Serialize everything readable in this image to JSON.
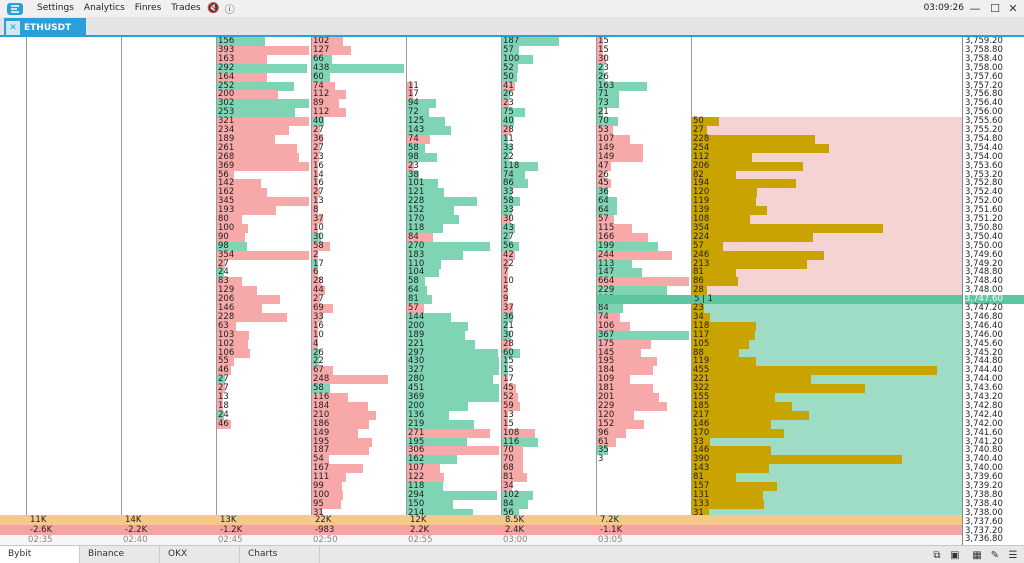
{
  "menu": {
    "items": [
      "Settings",
      "Analytics",
      "Finres",
      "Trades"
    ],
    "clock": "03:09:26"
  },
  "tab": {
    "label": "ETHUSDT"
  },
  "colors": {
    "buy": "#7fd4b3",
    "sell": "#f7a8a8",
    "gold": "#c9a300",
    "accent": "#2aa0d8"
  },
  "prices": [
    "3,759.20",
    "3,758.80",
    "3,758.40",
    "3,758.00",
    "3,757.60",
    "3,757.20",
    "3,756.80",
    "3,756.40",
    "3,756.00",
    "3,755.60",
    "3,755.20",
    "3,754.80",
    "3,754.40",
    "3,754.00",
    "3,753.60",
    "3,753.20",
    "3,752.80",
    "3,752.40",
    "3,752.00",
    "3,751.60",
    "3,751.20",
    "3,750.80",
    "3,750.40",
    "3,750.00",
    "3,749.60",
    "3,749.20",
    "3,748.80",
    "3,748.40",
    "3,748.00",
    "3,747.60",
    "3,747.20",
    "3,746.80",
    "3,746.40",
    "3,746.00",
    "3,745.60",
    "3,745.20",
    "3,744.80",
    "3,744.40",
    "3,744.00",
    "3,743.60",
    "3,743.20",
    "3,742.80",
    "3,742.40",
    "3,742.00",
    "3,741.60",
    "3,741.20",
    "3,740.80",
    "3,740.40",
    "3,740.00",
    "3,739.60",
    "3,739.20",
    "3,738.80",
    "3,738.40",
    "3,738.00",
    "3,737.60",
    "3,737.20",
    "3,736.80"
  ],
  "current_price_label": "3,747.60",
  "current_price_cell": "5 | 1",
  "columns": [
    {
      "time": "02:35",
      "total": "11K",
      "delta": "-2.6K",
      "cells": []
    },
    {
      "time": "02:40",
      "total": "14K",
      "delta": "-2.2K",
      "cells": []
    },
    {
      "time": "02:45",
      "total": "13K",
      "delta": "-1.2K",
      "cells": [
        [
          "156",
          "b"
        ],
        [
          "393",
          "s"
        ],
        [
          "163",
          "s"
        ],
        [
          "292",
          "b"
        ],
        [
          "164",
          "s"
        ],
        [
          "252",
          "b"
        ],
        [
          "200",
          "s"
        ],
        [
          "302",
          "b"
        ],
        [
          "253",
          "b"
        ],
        [
          "321",
          "s"
        ],
        [
          "234",
          "s"
        ],
        [
          "189",
          "s"
        ],
        [
          "261",
          "s"
        ],
        [
          "268",
          "s"
        ],
        [
          "369",
          "s"
        ],
        [
          "56",
          "s"
        ],
        [
          "142",
          "s"
        ],
        [
          "162",
          "s"
        ],
        [
          "345",
          "s"
        ],
        [
          "193",
          "s"
        ],
        [
          "80",
          "s"
        ],
        [
          "100",
          "s"
        ],
        [
          "90",
          "s"
        ],
        [
          "98",
          "b"
        ],
        [
          "354",
          "s"
        ],
        [
          "27",
          "s"
        ],
        [
          "24",
          "b"
        ],
        [
          "83",
          "s"
        ],
        [
          "129",
          "s"
        ],
        [
          "206",
          "s"
        ],
        [
          "146",
          "s"
        ],
        [
          "228",
          "s"
        ],
        [
          "63",
          "s"
        ],
        [
          "103",
          "s"
        ],
        [
          "102",
          "s"
        ],
        [
          "106",
          "s"
        ],
        [
          "55",
          "s"
        ],
        [
          "46",
          "s"
        ],
        [
          "27",
          "b"
        ],
        [
          "27",
          "s"
        ],
        [
          "13",
          "s"
        ],
        [
          "18",
          "s"
        ],
        [
          "24",
          "b"
        ],
        [
          "46",
          "s"
        ]
      ]
    },
    {
      "time": "02:50",
      "total": "22K",
      "delta": "-983",
      "cells": [
        [
          "102",
          "s"
        ],
        [
          "127",
          "s"
        ],
        [
          "66",
          "b"
        ],
        [
          "438",
          "b"
        ],
        [
          "60",
          "b"
        ],
        [
          "74",
          "s"
        ],
        [
          "112",
          "s"
        ],
        [
          "89",
          "s"
        ],
        [
          "112",
          "s"
        ],
        [
          "40",
          "b"
        ],
        [
          "27",
          "s"
        ],
        [
          "36",
          "s"
        ],
        [
          "27",
          "s"
        ],
        [
          "23",
          "s"
        ],
        [
          "16",
          "s"
        ],
        [
          "14",
          "s"
        ],
        [
          "16",
          "s"
        ],
        [
          "27",
          "s"
        ],
        [
          "13",
          "s"
        ],
        [
          "8",
          "s"
        ],
        [
          "37",
          "s"
        ],
        [
          "10",
          "s"
        ],
        [
          "30",
          "b"
        ],
        [
          "58",
          "s"
        ],
        [
          "2",
          "s"
        ],
        [
          "17",
          "b"
        ],
        [
          "6",
          "s"
        ],
        [
          "28",
          "s"
        ],
        [
          "44",
          "s"
        ],
        [
          "27",
          "s"
        ],
        [
          "69",
          "s"
        ],
        [
          "33",
          "s"
        ],
        [
          "16",
          "s"
        ],
        [
          "10",
          "s"
        ],
        [
          "4",
          "s"
        ],
        [
          "26",
          "b"
        ],
        [
          "22",
          "b"
        ],
        [
          "67",
          "s"
        ],
        [
          "248",
          "s"
        ],
        [
          "58",
          "b"
        ],
        [
          "116",
          "s"
        ],
        [
          "184",
          "s"
        ],
        [
          "210",
          "s"
        ],
        [
          "186",
          "s"
        ],
        [
          "149",
          "s"
        ],
        [
          "195",
          "s"
        ],
        [
          "187",
          "s"
        ],
        [
          "54",
          "s"
        ],
        [
          "167",
          "s"
        ],
        [
          "111",
          "s"
        ],
        [
          "99",
          "s"
        ],
        [
          "100",
          "s"
        ],
        [
          "95",
          "s"
        ],
        [
          "31",
          "s"
        ]
      ]
    },
    {
      "time": "02:55",
      "total": "12K",
      "delta": "2.2K",
      "cells": [
        [
          "",
          "x"
        ],
        [
          "",
          "x"
        ],
        [
          "",
          "x"
        ],
        [
          "",
          "x"
        ],
        [
          "",
          "x"
        ],
        [
          "11",
          "s"
        ],
        [
          "17",
          "s"
        ],
        [
          "94",
          "b"
        ],
        [
          "72",
          "b"
        ],
        [
          "125",
          "b"
        ],
        [
          "143",
          "b"
        ],
        [
          "74",
          "s"
        ],
        [
          "58",
          "b"
        ],
        [
          "98",
          "b"
        ],
        [
          "23",
          "s"
        ],
        [
          "38",
          "b"
        ],
        [
          "101",
          "b"
        ],
        [
          "121",
          "b"
        ],
        [
          "228",
          "b"
        ],
        [
          "152",
          "b"
        ],
        [
          "170",
          "b"
        ],
        [
          "118",
          "b"
        ],
        [
          "84",
          "s"
        ],
        [
          "270",
          "b"
        ],
        [
          "183",
          "b"
        ],
        [
          "110",
          "b"
        ],
        [
          "104",
          "b"
        ],
        [
          "58",
          "b"
        ],
        [
          "64",
          "b"
        ],
        [
          "81",
          "b"
        ],
        [
          "57",
          "s"
        ],
        [
          "144",
          "b"
        ],
        [
          "200",
          "b"
        ],
        [
          "189",
          "b"
        ],
        [
          "221",
          "b"
        ],
        [
          "297",
          "b"
        ],
        [
          "430",
          "b"
        ],
        [
          "327",
          "b"
        ],
        [
          "280",
          "b"
        ],
        [
          "451",
          "b"
        ],
        [
          "369",
          "b"
        ],
        [
          "200",
          "b"
        ],
        [
          "136",
          "b"
        ],
        [
          "219",
          "b"
        ],
        [
          "271",
          "s"
        ],
        [
          "195",
          "b"
        ],
        [
          "306",
          "s"
        ],
        [
          "162",
          "b"
        ],
        [
          "107",
          "s"
        ],
        [
          "122",
          "s"
        ],
        [
          "118",
          "b"
        ],
        [
          "294",
          "b"
        ],
        [
          "150",
          "b"
        ],
        [
          "214",
          "b"
        ]
      ]
    },
    {
      "time": "03:00",
      "total": "8.5K",
      "delta": "2.4K",
      "cells": [
        [
          "187",
          "b"
        ],
        [
          "57",
          "b"
        ],
        [
          "100",
          "b"
        ],
        [
          "52",
          "b"
        ],
        [
          "50",
          "b"
        ],
        [
          "41",
          "s"
        ],
        [
          "26",
          "b"
        ],
        [
          "23",
          "s"
        ],
        [
          "75",
          "b"
        ],
        [
          "40",
          "b"
        ],
        [
          "28",
          "s"
        ],
        [
          "11",
          "b"
        ],
        [
          "33",
          "b"
        ],
        [
          "22",
          "b"
        ],
        [
          "118",
          "b"
        ],
        [
          "74",
          "b"
        ],
        [
          "86",
          "b"
        ],
        [
          "33",
          "b"
        ],
        [
          "58",
          "b"
        ],
        [
          "33",
          "b"
        ],
        [
          "30",
          "s"
        ],
        [
          "43",
          "b"
        ],
        [
          "27",
          "b"
        ],
        [
          "56",
          "b"
        ],
        [
          "42",
          "s"
        ],
        [
          "22",
          "s"
        ],
        [
          "7",
          "s"
        ],
        [
          "10",
          "s"
        ],
        [
          "5",
          "s"
        ],
        [
          "9",
          "s"
        ],
        [
          "37",
          "s"
        ],
        [
          "36",
          "b"
        ],
        [
          "21",
          "b"
        ],
        [
          "30",
          "b"
        ],
        [
          "28",
          "s"
        ],
        [
          "60",
          "b"
        ],
        [
          "15",
          "b"
        ],
        [
          "15",
          "b"
        ],
        [
          "17",
          "s"
        ],
        [
          "45",
          "s"
        ],
        [
          "52",
          "s"
        ],
        [
          "59",
          "s"
        ],
        [
          "13",
          "s"
        ],
        [
          "15",
          "s"
        ],
        [
          "108",
          "s"
        ],
        [
          "116",
          "b"
        ],
        [
          "70",
          "s"
        ],
        [
          "70",
          "s"
        ],
        [
          "68",
          "s"
        ],
        [
          "81",
          "s"
        ],
        [
          "34",
          "s"
        ],
        [
          "102",
          "b"
        ],
        [
          "84",
          "b"
        ],
        [
          "56",
          "b"
        ]
      ]
    },
    {
      "time": "03:05",
      "total": "7.2K",
      "delta": "-1.1K",
      "cells": [
        [
          "15",
          "s"
        ],
        [
          "15",
          "s"
        ],
        [
          "30",
          "s"
        ],
        [
          "23",
          "b"
        ],
        [
          "26",
          "b"
        ],
        [
          "163",
          "b"
        ],
        [
          "71",
          "b"
        ],
        [
          "73",
          "b"
        ],
        [
          "21",
          "b"
        ],
        [
          "70",
          "b"
        ],
        [
          "53",
          "s"
        ],
        [
          "107",
          "s"
        ],
        [
          "149",
          "s"
        ],
        [
          "149",
          "s"
        ],
        [
          "47",
          "s"
        ],
        [
          "26",
          "s"
        ],
        [
          "45",
          "s"
        ],
        [
          "36",
          "b"
        ],
        [
          "64",
          "b"
        ],
        [
          "64",
          "b"
        ],
        [
          "57",
          "s"
        ],
        [
          "115",
          "s"
        ],
        [
          "166",
          "s"
        ],
        [
          "199",
          "b"
        ],
        [
          "244",
          "s"
        ],
        [
          "113",
          "b"
        ],
        [
          "147",
          "b"
        ],
        [
          "664",
          "s"
        ],
        [
          "229",
          "b"
        ],
        [
          "135",
          "s"
        ],
        [
          "84",
          "b"
        ],
        [
          "74",
          "s"
        ],
        [
          "106",
          "s"
        ],
        [
          "367",
          "b"
        ],
        [
          "175",
          "s"
        ],
        [
          "145",
          "s"
        ],
        [
          "195",
          "s"
        ],
        [
          "184",
          "s"
        ],
        [
          "109",
          "s"
        ],
        [
          "181",
          "s"
        ],
        [
          "201",
          "s"
        ],
        [
          "229",
          "s"
        ],
        [
          "120",
          "s"
        ],
        [
          "152",
          "s"
        ],
        [
          "96",
          "s"
        ],
        [
          "61",
          "s"
        ],
        [
          "35",
          "b"
        ],
        [
          "3",
          "x"
        ]
      ]
    }
  ],
  "profile": [
    [
      "",
      "x"
    ],
    [
      "",
      "x"
    ],
    [
      "",
      "x"
    ],
    [
      "",
      "x"
    ],
    [
      "",
      "x"
    ],
    [
      "",
      "x"
    ],
    [
      "",
      "x"
    ],
    [
      "",
      "x"
    ],
    [
      "",
      "x"
    ],
    [
      "50",
      "g"
    ],
    [
      "27",
      "g"
    ],
    [
      "228",
      "g"
    ],
    [
      "254",
      "g"
    ],
    [
      "112",
      "g"
    ],
    [
      "206",
      "g"
    ],
    [
      "82",
      "g"
    ],
    [
      "194",
      "g"
    ],
    [
      "120",
      "g"
    ],
    [
      "119",
      "g"
    ],
    [
      "139",
      "g"
    ],
    [
      "108",
      "g"
    ],
    [
      "354",
      "g"
    ],
    [
      "224",
      "g"
    ],
    [
      "57",
      "g"
    ],
    [
      "246",
      "g"
    ],
    [
      "213",
      "g"
    ],
    [
      "81",
      "g"
    ],
    [
      "86",
      "g"
    ],
    [
      "28",
      "g"
    ],
    [
      "38",
      "g"
    ],
    [
      "23",
      "g"
    ],
    [
      "34",
      "g"
    ],
    [
      "118",
      "g"
    ],
    [
      "117",
      "g"
    ],
    [
      "105",
      "g"
    ],
    [
      "88",
      "g"
    ],
    [
      "119",
      "g"
    ],
    [
      "455",
      "g"
    ],
    [
      "221",
      "g"
    ],
    [
      "322",
      "g"
    ],
    [
      "155",
      "g"
    ],
    [
      "185",
      "g"
    ],
    [
      "217",
      "g"
    ],
    [
      "146",
      "g"
    ],
    [
      "170",
      "g"
    ],
    [
      "33",
      "g"
    ],
    [
      "146",
      "g"
    ],
    [
      "390",
      "g"
    ],
    [
      "143",
      "g"
    ],
    [
      "81",
      "g"
    ],
    [
      "157",
      "g"
    ],
    [
      "131",
      "g"
    ],
    [
      "133",
      "g"
    ],
    [
      "31",
      "g"
    ],
    [
      "26",
      "g"
    ],
    [
      "166",
      "g"
    ],
    [
      "52",
      "g"
    ]
  ],
  "bottom_tabs": [
    "Bybit",
    "Binance",
    "OKX",
    "Charts"
  ]
}
